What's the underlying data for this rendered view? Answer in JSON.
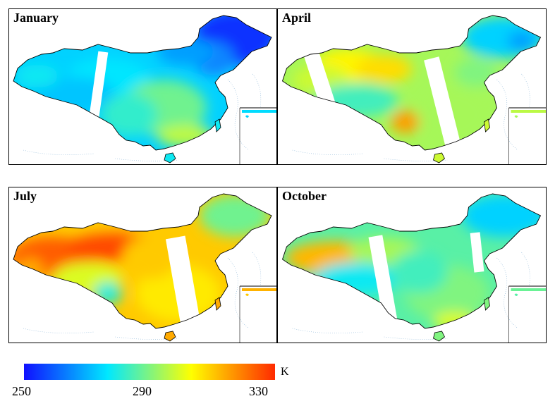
{
  "panels": [
    {
      "title": "January",
      "mean_level": 0.3,
      "scheme": "winter"
    },
    {
      "title": "April",
      "mean_level": 0.55,
      "scheme": "spring"
    },
    {
      "title": "July",
      "mean_level": 0.75,
      "scheme": "summer"
    },
    {
      "title": "October",
      "mean_level": 0.45,
      "scheme": "autumn"
    }
  ],
  "colorbar": {
    "unit": "K",
    "min": 250,
    "max": 330,
    "ticks": [
      "250",
      "290",
      "330"
    ],
    "colors": [
      "#1010ff",
      "#00e8ff",
      "#ffff00",
      "#ff2a00"
    ]
  }
}
